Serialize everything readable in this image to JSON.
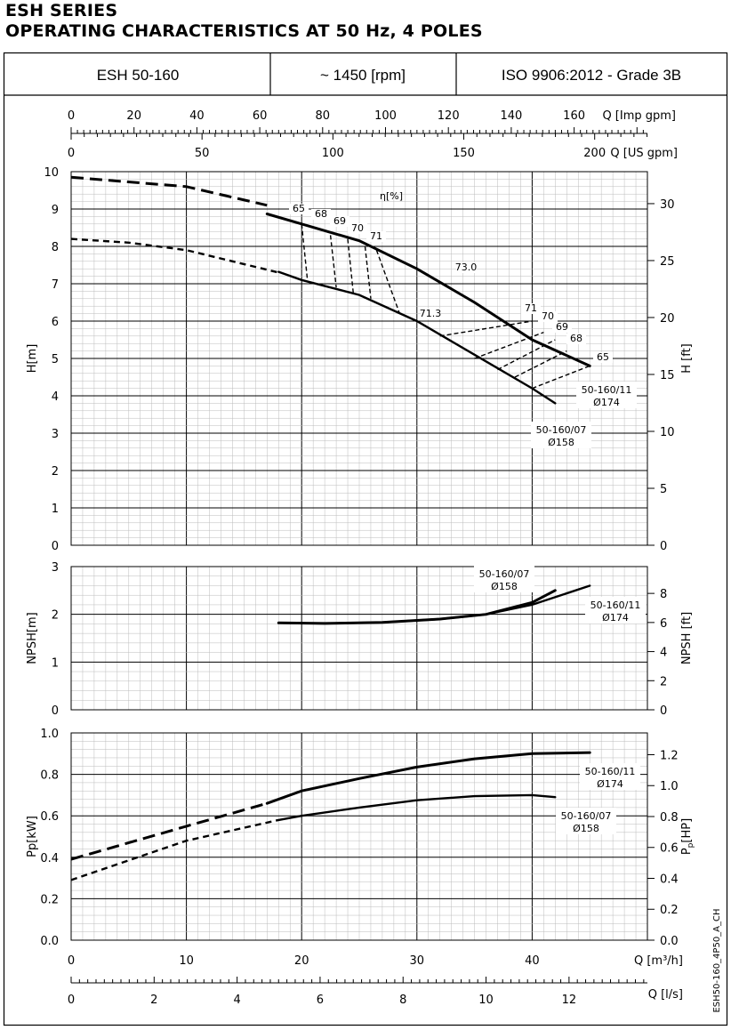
{
  "header": {
    "series": "ESH SERIES",
    "subtitle": "OPERATING CHARACTERISTICS AT 50 Hz, 4 POLES"
  },
  "info_box": {
    "model": "ESH 50-160",
    "speed": "~ 1450 [rpm]",
    "standard": "ISO 9906:2012 - Grade 3B"
  },
  "side_code": "ESH50-160_4P50_A_CH",
  "chart_data": {
    "type": "line",
    "x_label": "Q [m³/h]",
    "x_range": [
      0,
      50
    ],
    "x_ticks": [
      0,
      10,
      20,
      30,
      40
    ],
    "aux_axes": [
      {
        "label": "Q [Imp gpm]",
        "ticks": [
          0,
          20,
          40,
          60,
          80,
          100,
          120,
          140,
          160
        ],
        "per_m3h": 3.6662
      },
      {
        "label": "Q [US gpm]",
        "ticks": [
          0,
          50,
          100,
          150,
          200
        ],
        "per_m3h": 4.4029
      },
      {
        "label": "Q [l/s]",
        "ticks": [
          0,
          2,
          4,
          6,
          8,
          10,
          12
        ],
        "per_m3h": 0.27778
      }
    ],
    "panels": [
      {
        "name": "head",
        "ylabel": "H[m]",
        "ylim": [
          0,
          10
        ],
        "yticks": [
          0,
          1,
          2,
          3,
          4,
          5,
          6,
          7,
          8,
          9,
          10
        ],
        "y2label": "H [ft]",
        "y2ticks": [
          0,
          5,
          10,
          15,
          20,
          25,
          30
        ],
        "y2_per_unit": 3.2808,
        "efficiency_label": "η[%]",
        "series": [
          {
            "name": "50-160/11 Ø174",
            "label_lines": [
              "50-160/11",
              "Ø174"
            ],
            "dashed": [
              [
                0,
                9.85
              ],
              [
                10,
                9.6
              ],
              [
                17,
                9.1
              ]
            ],
            "solid": [
              [
                17,
                8.87
              ],
              [
                20,
                8.6
              ],
              [
                25,
                8.15
              ],
              [
                30,
                7.4
              ],
              [
                35,
                6.5
              ],
              [
                40,
                5.5
              ],
              [
                45,
                4.8
              ]
            ]
          },
          {
            "name": "50-160/07 Ø158",
            "label_lines": [
              "50-160/07",
              "Ø158"
            ],
            "dashed": [
              [
                0,
                8.2
              ],
              [
                5,
                8.1
              ],
              [
                10,
                7.9
              ],
              [
                18,
                7.3
              ]
            ],
            "solid": [
              [
                18,
                7.32
              ],
              [
                20,
                7.1
              ],
              [
                25,
                6.7
              ],
              [
                30,
                6.0
              ],
              [
                35,
                5.1
              ],
              [
                40,
                4.2
              ],
              [
                42,
                3.8
              ]
            ]
          }
        ],
        "efficiency_contours": [
          {
            "label": "65",
            "points": [
              [
                20,
                8.6
              ],
              [
                20.5,
                7.1
              ]
            ]
          },
          {
            "label": "68",
            "points": [
              [
                22.5,
                8.3
              ],
              [
                23,
                6.9
              ]
            ]
          },
          {
            "label": "69",
            "points": [
              [
                24,
                8.2
              ],
              [
                24.5,
                6.7
              ]
            ]
          },
          {
            "label": "70",
            "points": [
              [
                25.5,
                8.0
              ],
              [
                26,
                6.6
              ]
            ]
          },
          {
            "label": "71",
            "points": [
              [
                26.5,
                7.9
              ],
              [
                28.5,
                6.2
              ]
            ]
          },
          {
            "label": "73.0",
            "points": []
          },
          {
            "label": "71.3",
            "points": []
          },
          {
            "label": "71",
            "points": [
              [
                32,
                5.6
              ],
              [
                40,
                6.0
              ]
            ]
          },
          {
            "label": "70",
            "points": [
              [
                35,
                5.0
              ],
              [
                41,
                5.7
              ]
            ]
          },
          {
            "label": "69",
            "points": [
              [
                37,
                4.7
              ],
              [
                42,
                5.5
              ]
            ]
          },
          {
            "label": "68",
            "points": [
              [
                38.5,
                4.5
              ],
              [
                43,
                5.2
              ]
            ]
          },
          {
            "label": "65",
            "points": [
              [
                40,
                4.2
              ],
              [
                45,
                4.8
              ]
            ]
          }
        ]
      },
      {
        "name": "npsh",
        "ylabel": "NPSH[m]",
        "ylim": [
          0,
          3
        ],
        "yticks": [
          0,
          1,
          2,
          3
        ],
        "y2label": "NPSH [ft]",
        "y2ticks": [
          0,
          2,
          4,
          6,
          8
        ],
        "y2_per_unit": 3.2808,
        "series": [
          {
            "name": "50-160/07 Ø158",
            "label_lines": [
              "50-160/07",
              "Ø158"
            ],
            "solid": [
              [
                18,
                1.82
              ],
              [
                22,
                1.81
              ],
              [
                27,
                1.83
              ],
              [
                32,
                1.9
              ],
              [
                36,
                2.0
              ],
              [
                40,
                2.25
              ],
              [
                42,
                2.5
              ]
            ]
          },
          {
            "name": "50-160/11 Ø174",
            "label_lines": [
              "50-160/11",
              "Ø174"
            ],
            "solid": [
              [
                18,
                1.82
              ],
              [
                22,
                1.81
              ],
              [
                27,
                1.83
              ],
              [
                32,
                1.9
              ],
              [
                36,
                2.0
              ],
              [
                40,
                2.2
              ],
              [
                45,
                2.6
              ]
            ]
          }
        ]
      },
      {
        "name": "power",
        "ylabel": "Pp[kW]",
        "ylim": [
          0,
          1.0
        ],
        "yticks": [
          0.0,
          0.2,
          0.4,
          0.6,
          0.8,
          1.0
        ],
        "yticklabels": [
          "0.0",
          "0.2",
          "0.4",
          "0.6",
          "0.8",
          "1.0"
        ],
        "y2label_main": "P",
        "y2label_sub": "p",
        "y2label_tail": "[HP]",
        "y2ticks": [
          0.0,
          0.2,
          0.4,
          0.6,
          0.8,
          1.0,
          1.2
        ],
        "y2ticklabels": [
          "0.0",
          "0.2",
          "0.4",
          "0.6",
          "0.8",
          "1.0",
          "1.2"
        ],
        "y2_per_unit": 1.341,
        "series": [
          {
            "name": "50-160/11 Ø174",
            "label_lines": [
              "50-160/11",
              "Ø174"
            ],
            "dashed": [
              [
                0,
                0.39
              ],
              [
                10,
                0.55
              ],
              [
                17,
                0.66
              ]
            ],
            "solid": [
              [
                17,
                0.66
              ],
              [
                20,
                0.72
              ],
              [
                25,
                0.78
              ],
              [
                30,
                0.835
              ],
              [
                35,
                0.875
              ],
              [
                40,
                0.9
              ],
              [
                45,
                0.905
              ]
            ]
          },
          {
            "name": "50-160/07 Ø158",
            "label_lines": [
              "50-160/07",
              "Ø158"
            ],
            "dashed": [
              [
                0,
                0.29
              ],
              [
                10,
                0.48
              ],
              [
                18,
                0.58
              ]
            ],
            "solid": [
              [
                18,
                0.58
              ],
              [
                20,
                0.6
              ],
              [
                25,
                0.64
              ],
              [
                30,
                0.675
              ],
              [
                35,
                0.695
              ],
              [
                40,
                0.7
              ],
              [
                42,
                0.69
              ]
            ]
          }
        ]
      }
    ]
  }
}
